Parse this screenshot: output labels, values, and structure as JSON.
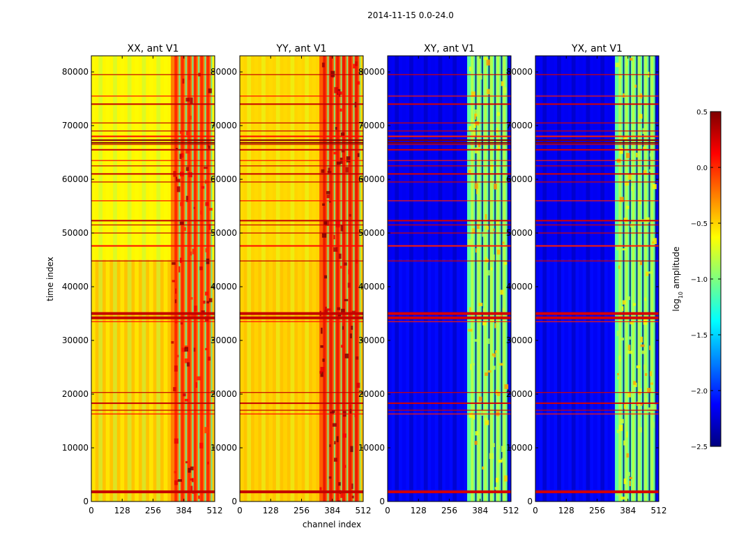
{
  "figure": {
    "suptitle": "2014-11-15 0.0-24.0",
    "xlabel": "channel index",
    "ylabel": "time index"
  },
  "colorbar": {
    "label_main": "log",
    "label_sub": "10",
    "label_end": " amplitude",
    "range": [
      -2.5,
      0.5
    ],
    "ticks": [
      0.5,
      0.0,
      -0.5,
      -1.0,
      -1.5,
      -2.0,
      -2.5
    ],
    "tick_labels": [
      "0.5",
      "0.0",
      "−0.5",
      "−1.0",
      "−1.5",
      "−2.0",
      "−2.5"
    ],
    "colormap": "jet",
    "colors": [
      "#00007f",
      "#0000ff",
      "#007fff",
      "#00ffff",
      "#7fff7f",
      "#ffff00",
      "#ff7f00",
      "#ff0000",
      "#7f0000"
    ]
  },
  "chart_data": {
    "type": "heatmap",
    "xlim": [
      0,
      512
    ],
    "ylim": [
      0,
      83000
    ],
    "xticks": [
      0,
      128,
      256,
      384,
      512
    ],
    "yticks": [
      0,
      10000,
      20000,
      30000,
      40000,
      50000,
      60000,
      70000,
      80000
    ],
    "rfi_band_channels": [
      330,
      500
    ],
    "flagged_time_rows": [
      1800,
      16300,
      17000,
      18300,
      20300,
      33500,
      34200,
      35000,
      44800,
      47600,
      50000,
      51500,
      52300,
      56000,
      59500,
      61000,
      62500,
      63500,
      65500,
      66500,
      67300,
      68000,
      69000,
      70500,
      74000,
      75500,
      79500
    ],
    "panels": [
      {
        "title": "XX, ant V1",
        "base_level": -0.75,
        "band_level": -0.25,
        "early_level": -0.45,
        "rfi_level": 0.3
      },
      {
        "title": "YY, ant V1",
        "base_level": -0.65,
        "band_level": -0.15,
        "early_level": -0.45,
        "rfi_level": 0.3
      },
      {
        "title": "XY, ant V1",
        "base_level": -2.3,
        "band_level": -1.1,
        "early_level": -2.1,
        "rfi_level": 0.25
      },
      {
        "title": "YX, ant V1",
        "base_level": -2.3,
        "band_level": -1.1,
        "early_level": -2.1,
        "rfi_level": 0.25
      }
    ]
  }
}
